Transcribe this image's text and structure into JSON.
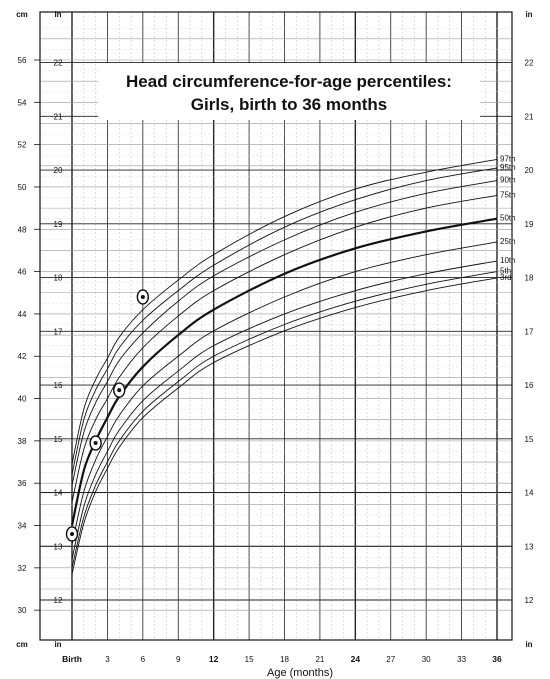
{
  "chart_data": {
    "type": "line",
    "title": [
      "Head circumference-for-age percentiles:",
      "Girls, birth to 36 months"
    ],
    "xlabel": "Age (months)",
    "x_tick_labels": [
      {
        "x": 0,
        "label": "Birth"
      },
      {
        "x": 3,
        "label": "3"
      },
      {
        "x": 6,
        "label": "6"
      },
      {
        "x": 9,
        "label": "9"
      },
      {
        "x": 12,
        "label": "12"
      },
      {
        "x": 15,
        "label": "15"
      },
      {
        "x": 18,
        "label": "18"
      },
      {
        "x": 21,
        "label": "21"
      },
      {
        "x": 24,
        "label": "24"
      },
      {
        "x": 27,
        "label": "27"
      },
      {
        "x": 30,
        "label": "30"
      },
      {
        "x": 33,
        "label": "33"
      },
      {
        "x": 36,
        "label": "36"
      }
    ],
    "bold_x_ticks": [
      0,
      12,
      24,
      36
    ],
    "xlim": [
      0,
      36
    ],
    "ylim_cm": [
      30,
      57.5
    ],
    "y_unit_left": "cm",
    "y_unit_right": "in",
    "cm_ticks": [
      30,
      32,
      34,
      36,
      38,
      40,
      42,
      44,
      46,
      48,
      50,
      52,
      54,
      56
    ],
    "in_ticks": [
      12,
      13,
      14,
      15,
      16,
      17,
      18,
      19,
      20,
      21,
      22
    ],
    "grid": true,
    "series": [
      {
        "name": "97th",
        "x": [
          0,
          1,
          2,
          3,
          4,
          6,
          9,
          12,
          18,
          24,
          30,
          36
        ],
        "values": [
          36.9,
          39.5,
          40.9,
          41.9,
          42.9,
          44.2,
          45.6,
          46.8,
          48.6,
          49.9,
          50.7,
          51.3
        ]
      },
      {
        "name": "95th",
        "x": [
          0,
          1,
          2,
          3,
          4,
          6,
          9,
          12,
          18,
          24,
          30,
          36
        ],
        "values": [
          36.4,
          39.0,
          40.4,
          41.4,
          42.4,
          43.7,
          45.1,
          46.3,
          48.1,
          49.4,
          50.3,
          50.9
        ]
      },
      {
        "name": "90th",
        "x": [
          0,
          1,
          2,
          3,
          4,
          6,
          9,
          12,
          18,
          24,
          30,
          36
        ],
        "values": [
          35.9,
          38.4,
          39.8,
          40.8,
          41.8,
          43.1,
          44.6,
          45.8,
          47.5,
          48.8,
          49.7,
          50.3
        ]
      },
      {
        "name": "75th",
        "x": [
          0,
          1,
          2,
          3,
          4,
          6,
          9,
          12,
          18,
          24,
          30,
          36
        ],
        "values": [
          35.1,
          37.6,
          39.0,
          40.0,
          41.0,
          42.4,
          43.9,
          45.1,
          46.8,
          48.1,
          49.0,
          49.6
        ]
      },
      {
        "name": "50th",
        "x": [
          0,
          1,
          2,
          3,
          4,
          6,
          9,
          12,
          18,
          24,
          30,
          36
        ],
        "values": [
          34.0,
          36.6,
          38.0,
          39.1,
          40.1,
          41.5,
          43.0,
          44.2,
          45.9,
          47.1,
          47.9,
          48.5
        ]
      },
      {
        "name": "25th",
        "x": [
          0,
          1,
          2,
          3,
          4,
          6,
          9,
          12,
          18,
          24,
          30,
          36
        ],
        "values": [
          33.1,
          35.6,
          37.1,
          38.2,
          39.2,
          40.6,
          42.0,
          43.2,
          44.8,
          46.0,
          46.8,
          47.4
        ]
      },
      {
        "name": "10th",
        "x": [
          0,
          1,
          2,
          3,
          4,
          6,
          9,
          12,
          18,
          24,
          30,
          36
        ],
        "values": [
          32.4,
          34.9,
          36.4,
          37.5,
          38.5,
          39.9,
          41.3,
          42.5,
          44.0,
          45.1,
          45.9,
          46.5
        ]
      },
      {
        "name": "5th",
        "x": [
          0,
          1,
          2,
          3,
          4,
          6,
          9,
          12,
          18,
          24,
          30,
          36
        ],
        "values": [
          32.0,
          34.4,
          35.9,
          37.0,
          38.0,
          39.4,
          40.8,
          42.0,
          43.5,
          44.6,
          45.4,
          46.0
        ]
      },
      {
        "name": "3rd",
        "x": [
          0,
          1,
          2,
          3,
          4,
          6,
          9,
          12,
          18,
          24,
          30,
          36
        ],
        "values": [
          31.7,
          34.1,
          35.6,
          36.7,
          37.7,
          39.1,
          40.5,
          41.7,
          43.2,
          44.3,
          45.1,
          45.7
        ]
      }
    ],
    "bold_series": "50th",
    "measurements": [
      {
        "x": 0,
        "y": 33.6
      },
      {
        "x": 2,
        "y": 37.9
      },
      {
        "x": 4,
        "y": 40.4
      },
      {
        "x": 6,
        "y": 44.8
      }
    ]
  }
}
